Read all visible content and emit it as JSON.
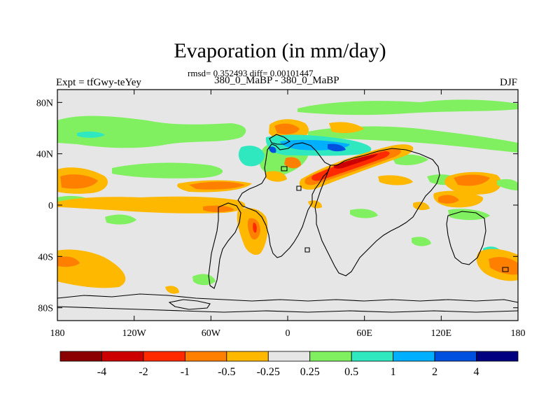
{
  "title": "Evaporation (in mm/day)",
  "subtitle": "rmsd= 0.352493 diff= 0.00101447",
  "left_label": "Expt = tfGwy-teYey",
  "center_label": "380_0_MaBP - 380_0_MaBP",
  "right_label": "DJF",
  "colors": {
    "background_field": "#e6e6e6",
    "coastline": "#000000"
  },
  "chart_data": {
    "type": "heatmap",
    "projection": "cylindrical-equidistant",
    "xlim": [
      -180,
      180
    ],
    "ylim": [
      -90,
      90
    ],
    "x_ticks": [
      {
        "value": -180,
        "label": "180"
      },
      {
        "value": -120,
        "label": "120W"
      },
      {
        "value": -60,
        "label": "60W"
      },
      {
        "value": 0,
        "label": "0"
      },
      {
        "value": 60,
        "label": "60E"
      },
      {
        "value": 120,
        "label": "120E"
      },
      {
        "value": 180,
        "label": "180"
      }
    ],
    "y_ticks": [
      {
        "value": 80,
        "label": "80N"
      },
      {
        "value": 40,
        "label": "40N"
      },
      {
        "value": 0,
        "label": "0"
      },
      {
        "value": -40,
        "label": "40S"
      },
      {
        "value": -80,
        "label": "80S"
      }
    ],
    "colorbar": {
      "boundaries": [
        "-4",
        "-2",
        "-1",
        "-0.5",
        "-0.25",
        "0.25",
        "0.5",
        "1",
        "2",
        "4"
      ],
      "colors": [
        "#8b0000",
        "#cc0000",
        "#ff2a00",
        "#ff8000",
        "#ffb800",
        "#e6e6e6",
        "#80f060",
        "#30e8c0",
        "#00b0ff",
        "#0050e0",
        "#000080"
      ]
    },
    "anomaly_regions": [
      {
        "lon": -165,
        "lat": 17,
        "color": "#ff8000"
      },
      {
        "lon": -165,
        "lat": 10,
        "color": "#ffb800"
      },
      {
        "lon": -155,
        "lat": 62,
        "color": "#80f060"
      },
      {
        "lon": -150,
        "lat": 55,
        "color": "#30e8c0"
      },
      {
        "lon": -80,
        "lat": 52,
        "color": "#80f060"
      },
      {
        "lon": -100,
        "lat": 28,
        "color": "#80f060"
      },
      {
        "lon": -60,
        "lat": 11,
        "color": "#ff8000"
      },
      {
        "lon": -75,
        "lat": 4,
        "color": "#ffb800"
      },
      {
        "lon": -130,
        "lat": -6,
        "color": "#80f060"
      },
      {
        "lon": -25,
        "lat": -20,
        "color": "#ffb800"
      },
      {
        "lon": -24,
        "lat": -17,
        "color": "#ff8000"
      },
      {
        "lon": -165,
        "lat": -48,
        "color": "#ffb800"
      },
      {
        "lon": 5,
        "lat": 64,
        "color": "#ff8000"
      },
      {
        "lon": 40,
        "lat": 68,
        "color": "#ffb800"
      },
      {
        "lon": -10,
        "lat": 40,
        "color": "#30e8c0"
      },
      {
        "lon": 30,
        "lat": 42,
        "color": "#0050e0"
      },
      {
        "lon": 65,
        "lat": 37,
        "color": "#cc0000"
      },
      {
        "lon": 58,
        "lat": 30,
        "color": "#ff2a00"
      },
      {
        "lon": 105,
        "lat": 28,
        "color": "#80f060"
      },
      {
        "lon": 155,
        "lat": 20,
        "color": "#ff8000"
      },
      {
        "lon": 140,
        "lat": 5,
        "color": "#ff8000"
      },
      {
        "lon": 170,
        "lat": -45,
        "color": "#ff8000"
      }
    ]
  }
}
